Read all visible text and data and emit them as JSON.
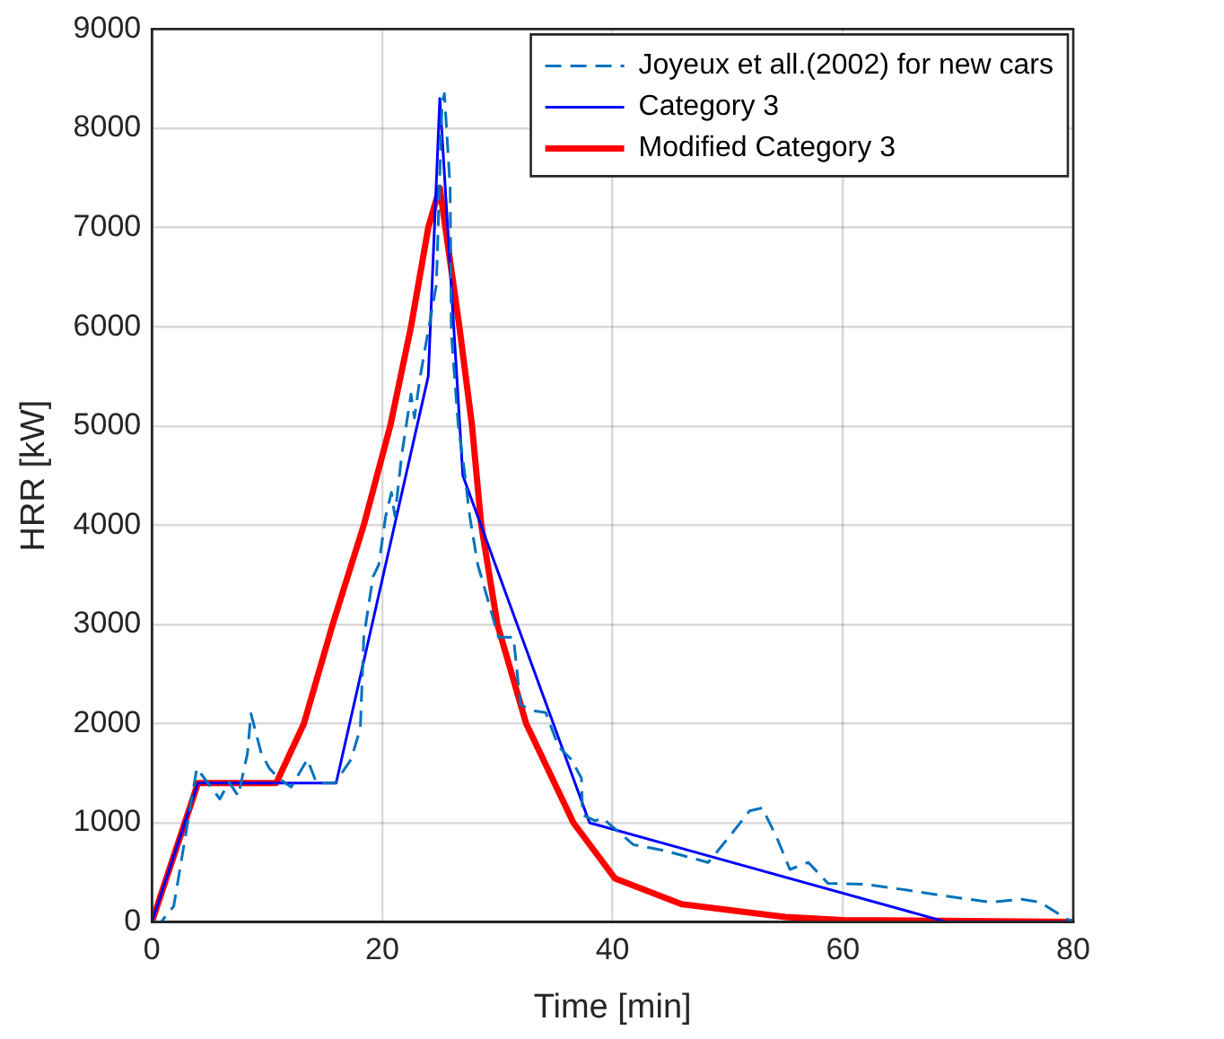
{
  "chart_data": {
    "type": "line",
    "xlabel": "Time [min]",
    "ylabel": "HRR [kW]",
    "xlim": [
      0,
      80
    ],
    "xticks": [
      0,
      20,
      40,
      60,
      80
    ],
    "ylim": [
      0,
      9000
    ],
    "yticks": [
      0,
      1000,
      2000,
      3000,
      4000,
      5000,
      6000,
      7000,
      8000,
      9000
    ],
    "grid": true,
    "legend": "top right",
    "marker": "none",
    "series": [
      {
        "name": "Joyeux et all.(2002) for new cars",
        "color": "#0072bd",
        "line_style": "dashed",
        "x": [
          0,
          0.8,
          1.9,
          3.9,
          5.9,
          6.7,
          7.5,
          8.3,
          8.6,
          9.5,
          10.2,
          11,
          12.1,
          13.5,
          14.3,
          15.9,
          17.3,
          18.1,
          18.4,
          19.2,
          19.7,
          20.3,
          20.8,
          21.1,
          21.7,
          22.5,
          22.8,
          23.3,
          24.7,
          25.2,
          25.4,
          25.9,
          26,
          26.6,
          27.1,
          27.6,
          28.3,
          28.6,
          30.1,
          31.4,
          32,
          33.1,
          34.2,
          35.3,
          36.4,
          37.3,
          37.4,
          38.5,
          39.1,
          41.8,
          44.5,
          48.3,
          50,
          51.9,
          53,
          54.3,
          55.4,
          57,
          58.7,
          61.9,
          65.7,
          69,
          72.8,
          75.5,
          77.1,
          79.3,
          80
        ],
        "values": [
          0,
          0,
          160,
          1550,
          1240,
          1410,
          1270,
          1700,
          2100,
          1700,
          1550,
          1450,
          1360,
          1640,
          1400,
          1400,
          1640,
          1950,
          2870,
          3480,
          3600,
          4090,
          4330,
          4090,
          4710,
          5320,
          5080,
          5500,
          6420,
          8260,
          8350,
          7400,
          5930,
          5010,
          4580,
          4090,
          3600,
          3480,
          2870,
          2870,
          2190,
          2130,
          2110,
          1770,
          1640,
          1450,
          1080,
          1020,
          1050,
          780,
          720,
          600,
          840,
          1120,
          1150,
          840,
          530,
          600,
          390,
          380,
          320,
          260,
          200,
          230,
          200,
          40,
          0
        ]
      },
      {
        "name": "Category 3",
        "color": "#0000ff",
        "line_style": "solid",
        "x": [
          0,
          4,
          16,
          24,
          25,
          27,
          38,
          69,
          80
        ],
        "values": [
          0,
          1400,
          1400,
          5500,
          8300,
          4500,
          1000,
          0,
          0
        ]
      },
      {
        "name": "Modified Category 3",
        "color": "#ff0000",
        "line_style": "solid",
        "x": [
          0,
          4,
          10.8,
          13.2,
          15.7,
          18.4,
          20.7,
          22.5,
          24,
          25,
          26.7,
          27.8,
          28.6,
          30,
          32.5,
          36.6,
          40.2,
          46,
          55,
          60,
          80
        ],
        "values": [
          0,
          1400,
          1400,
          2000,
          3000,
          4000,
          5000,
          6000,
          7000,
          7400,
          6000,
          5000,
          4000,
          3000,
          2000,
          1000,
          440,
          180,
          50,
          20,
          0
        ]
      }
    ]
  }
}
